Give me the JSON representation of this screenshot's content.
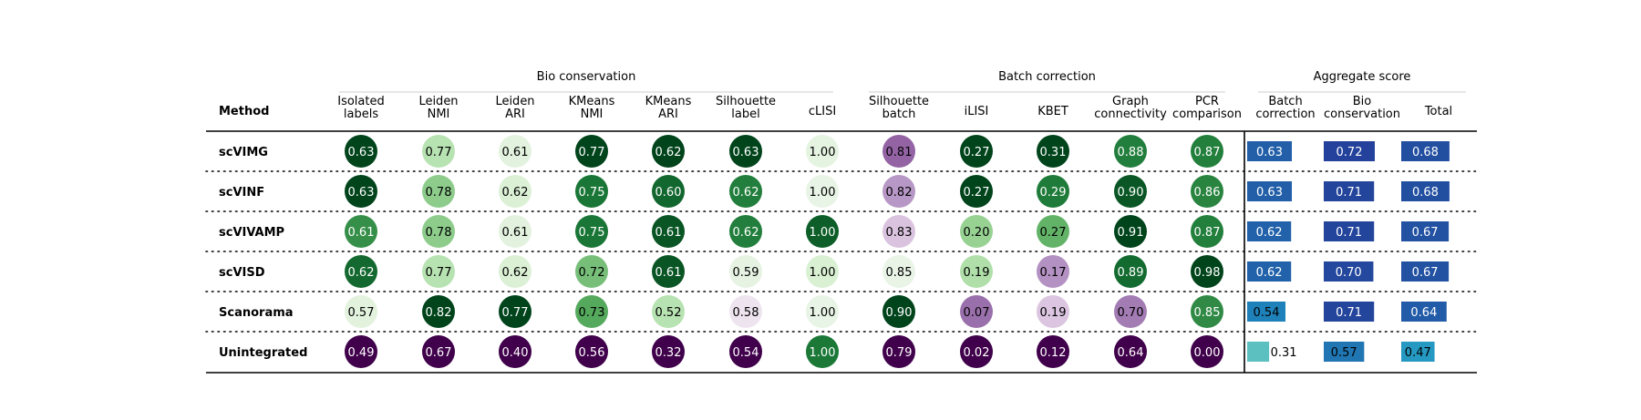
{
  "chart_data": {
    "type": "table",
    "group_headers": [
      {
        "id": "bio",
        "label": "Bio conservation"
      },
      {
        "id": "batch",
        "label": "Batch correction"
      },
      {
        "id": "agg",
        "label": "Aggregate score"
      }
    ],
    "method_header": "Method",
    "columns": [
      {
        "key": "isolated_labels",
        "lines": [
          "Isolated",
          "labels"
        ],
        "group": "bio",
        "kind": "circle"
      },
      {
        "key": "leiden_nmi",
        "lines": [
          "Leiden",
          "NMI"
        ],
        "group": "bio",
        "kind": "circle"
      },
      {
        "key": "leiden_ari",
        "lines": [
          "Leiden",
          "ARI"
        ],
        "group": "bio",
        "kind": "circle"
      },
      {
        "key": "kmeans_nmi",
        "lines": [
          "KMeans",
          "NMI"
        ],
        "group": "bio",
        "kind": "circle"
      },
      {
        "key": "kmeans_ari",
        "lines": [
          "KMeans",
          "ARI"
        ],
        "group": "bio",
        "kind": "circle"
      },
      {
        "key": "silhouette_label",
        "lines": [
          "Silhouette",
          "label"
        ],
        "group": "bio",
        "kind": "circle"
      },
      {
        "key": "clisi",
        "lines": [
          "cLISI"
        ],
        "group": "bio",
        "kind": "circle"
      },
      {
        "key": "silhouette_batch",
        "lines": [
          "Silhouette",
          "batch"
        ],
        "group": "batch",
        "kind": "circle"
      },
      {
        "key": "ilisi",
        "lines": [
          "iLISI"
        ],
        "group": "batch",
        "kind": "circle"
      },
      {
        "key": "kbet",
        "lines": [
          "KBET"
        ],
        "group": "batch",
        "kind": "circle"
      },
      {
        "key": "graph_connectivity",
        "lines": [
          "Graph",
          "connectivity"
        ],
        "group": "batch",
        "kind": "circle"
      },
      {
        "key": "pcr_comparison",
        "lines": [
          "PCR",
          "comparison"
        ],
        "group": "batch",
        "kind": "circle"
      },
      {
        "key": "agg_batch",
        "lines": [
          "Batch",
          "correction"
        ],
        "group": "agg",
        "kind": "bar"
      },
      {
        "key": "agg_bio",
        "lines": [
          "Bio",
          "conservation"
        ],
        "group": "agg",
        "kind": "bar"
      },
      {
        "key": "agg_total",
        "lines": [
          "Total"
        ],
        "group": "agg",
        "kind": "bar"
      }
    ],
    "rows": [
      {
        "method": "scVIMG",
        "values": [
          "0.63",
          "0.77",
          "0.61",
          "0.77",
          "0.62",
          "0.63",
          "1.00",
          "0.81",
          "0.27",
          "0.31",
          "0.88",
          "0.87",
          "0.63",
          "0.72",
          "0.68"
        ]
      },
      {
        "method": "scVINF",
        "values": [
          "0.63",
          "0.78",
          "0.62",
          "0.75",
          "0.60",
          "0.62",
          "1.00",
          "0.82",
          "0.27",
          "0.29",
          "0.90",
          "0.86",
          "0.63",
          "0.71",
          "0.68"
        ]
      },
      {
        "method": "scVIVAMP",
        "values": [
          "0.61",
          "0.78",
          "0.61",
          "0.75",
          "0.61",
          "0.62",
          "1.00",
          "0.83",
          "0.20",
          "0.27",
          "0.91",
          "0.87",
          "0.62",
          "0.71",
          "0.67"
        ]
      },
      {
        "method": "scVISD",
        "values": [
          "0.62",
          "0.77",
          "0.62",
          "0.72",
          "0.61",
          "0.59",
          "1.00",
          "0.85",
          "0.19",
          "0.17",
          "0.89",
          "0.98",
          "0.62",
          "0.70",
          "0.67"
        ]
      },
      {
        "method": "Scanorama",
        "values": [
          "0.57",
          "0.82",
          "0.77",
          "0.73",
          "0.52",
          "0.58",
          "1.00",
          "0.90",
          "0.07",
          "0.19",
          "0.70",
          "0.85",
          "0.54",
          "0.71",
          "0.64"
        ]
      },
      {
        "method": "Unintegrated",
        "values": [
          "0.49",
          "0.67",
          "0.40",
          "0.56",
          "0.32",
          "0.54",
          "1.00",
          "0.79",
          "0.02",
          "0.12",
          "0.64",
          "0.00",
          "0.31",
          "0.57",
          "0.47"
        ]
      }
    ],
    "colors": {
      "circle_colormap": "PRGn",
      "bar_colormap": "YlGnBu",
      "text_dark": "#000000",
      "text_light": "#ffffff"
    },
    "grid": false
  }
}
